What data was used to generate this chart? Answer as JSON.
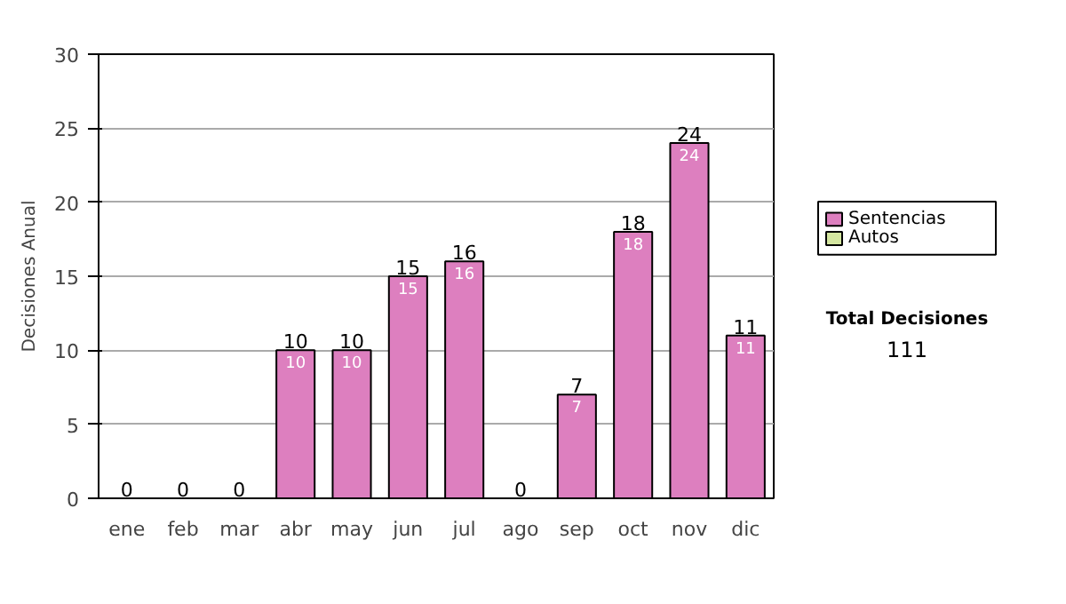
{
  "chart_data": {
    "type": "bar",
    "stacked": true,
    "ylabel": "Decisiones Anual",
    "categories": [
      "ene",
      "feb",
      "mar",
      "abr",
      "may",
      "jun",
      "jul",
      "ago",
      "sep",
      "oct",
      "nov",
      "dic"
    ],
    "series": [
      {
        "name": "Sentencias",
        "color": "#dd7fbf",
        "values": [
          0,
          0,
          0,
          10,
          10,
          15,
          16,
          0,
          7,
          18,
          24,
          11
        ],
        "value_labels": [
          null,
          null,
          null,
          "10",
          "10",
          "15",
          "16",
          null,
          "7",
          "18",
          "24",
          "11"
        ]
      },
      {
        "name": "Autos",
        "color": "#d4e6a0",
        "values": [
          0,
          0,
          0,
          0,
          0,
          0,
          0,
          0,
          0,
          0,
          0,
          0
        ]
      }
    ],
    "totals": [
      "0",
      "0",
      "0",
      "10",
      "10",
      "15",
      "16",
      "0",
      "7",
      "18",
      "24",
      "11"
    ],
    "ylim": [
      0,
      30
    ],
    "yticks": [
      0,
      5,
      10,
      15,
      20,
      25,
      30
    ],
    "grid": "y",
    "legend": "right",
    "annotations": [
      "Total Decisiones",
      "111"
    ]
  }
}
